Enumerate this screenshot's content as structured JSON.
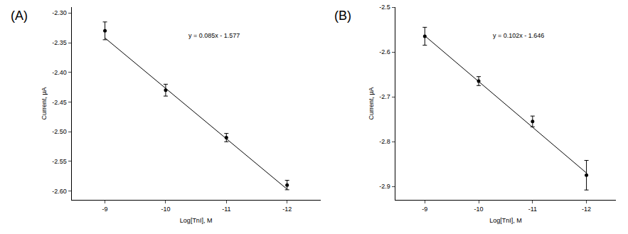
{
  "chart_data": [
    {
      "type": "scatter",
      "panel": "(A)",
      "annotation": "y = 0.085x - 1.577",
      "x_label": "Log[TnI], M",
      "y_label": "Current, µA",
      "x": [
        -9,
        -10,
        -11,
        -12
      ],
      "values": [
        -2.33,
        -2.43,
        -2.51,
        -2.59
      ],
      "error": [
        0.015,
        0.01,
        0.007,
        0.008
      ],
      "fit": {
        "slope": 0.085,
        "intercept": -1.577
      },
      "xlim": [
        -8.45,
        -12.55
      ],
      "xticks": [
        -9,
        -10,
        -11,
        -12
      ],
      "ylim": [
        -2.615,
        -2.29
      ],
      "yticks": [
        {
          "value": -2.3,
          "label": "-2.30"
        },
        {
          "value": -2.35,
          "label": "-2.35"
        },
        {
          "value": -2.4,
          "label": "-2.40"
        },
        {
          "value": -2.45,
          "label": "-2.45"
        },
        {
          "value": -2.5,
          "label": "-2.50"
        },
        {
          "value": -2.55,
          "label": "-2.55"
        },
        {
          "value": -2.6,
          "label": "-2.60"
        }
      ],
      "color": "#000000",
      "marker": "circle",
      "line_style": "solid"
    },
    {
      "type": "scatter",
      "panel": "(B)",
      "annotation": "y = 0.102x - 1.646",
      "x_label": "Log[TnI], M",
      "y_label": "Current, µA",
      "x": [
        -9,
        -10,
        -11,
        -12
      ],
      "values": [
        -2.565,
        -2.665,
        -2.755,
        -2.875
      ],
      "error": [
        0.02,
        0.01,
        0.012,
        0.033
      ],
      "fit": {
        "slope": 0.102,
        "intercept": -1.646
      },
      "xlim": [
        -8.45,
        -12.55
      ],
      "xticks": [
        -9,
        -10,
        -11,
        -12
      ],
      "ylim": [
        -2.93,
        -2.5
      ],
      "yticks": [
        -2.5,
        -2.6,
        -2.7,
        -2.8,
        -2.9
      ],
      "color": "#000000",
      "marker": "circle",
      "line_style": "solid"
    }
  ]
}
